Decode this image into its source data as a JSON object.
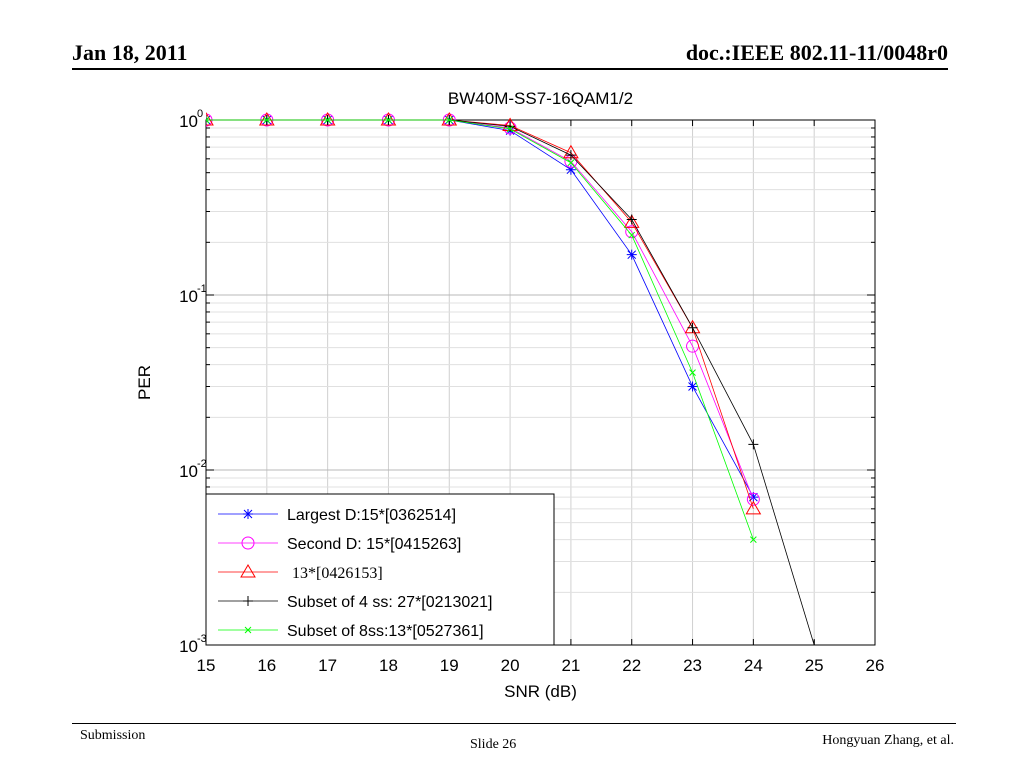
{
  "header": {
    "date": "Jan 18, 2011",
    "doc": "doc.:IEEE 802.11-11/0048r0"
  },
  "footer": {
    "left": "Submission",
    "center": "Slide 26",
    "right": "Hongyuan Zhang, et al."
  },
  "chart_data": {
    "type": "line",
    "title": "BW40M-SS7-16QAM1/2",
    "xlabel": "SNR (dB)",
    "ylabel": "PER",
    "xlim": [
      15,
      26
    ],
    "ylim": [
      0.001,
      1
    ],
    "yscale": "log",
    "grid": true,
    "legend_position": "bottom-left",
    "x_ticks": [
      "15",
      "16",
      "17",
      "18",
      "19",
      "20",
      "21",
      "22",
      "23",
      "24",
      "25",
      "26"
    ],
    "y_ticks": [
      {
        "base": "10",
        "exp": "0"
      },
      {
        "base": "10",
        "exp": "-1"
      },
      {
        "base": "10",
        "exp": "-2"
      },
      {
        "base": "10",
        "exp": "-3"
      }
    ],
    "series": [
      {
        "name": "Largest D:15*[0362514]",
        "color": "#0000ff",
        "marker": "star",
        "x": [
          15,
          16,
          17,
          18,
          19,
          20,
          21,
          22,
          23,
          24
        ],
        "y": [
          1,
          1,
          1,
          1,
          1,
          0.87,
          0.52,
          0.17,
          0.03,
          0.007
        ]
      },
      {
        "name": "Second D: 15*[0415263]",
        "color": "#ff00ff",
        "marker": "circle",
        "x": [
          15,
          16,
          17,
          18,
          19,
          20,
          21,
          22,
          23,
          24
        ],
        "y": [
          1,
          1,
          1,
          1,
          1,
          0.9,
          0.58,
          0.23,
          0.051,
          0.0068
        ]
      },
      {
        "name": "13*[0426153]",
        "color": "#ff0000",
        "marker": "triangle",
        "x": [
          15,
          16,
          17,
          18,
          19,
          20,
          21,
          22,
          23,
          24
        ],
        "y": [
          1,
          1,
          1,
          1,
          1,
          0.93,
          0.65,
          0.26,
          0.065,
          0.006
        ]
      },
      {
        "name": "Subset of 4 ss: 27*[0213021]",
        "color": "#000000",
        "marker": "plus",
        "x": [
          15,
          16,
          17,
          18,
          19,
          20,
          21,
          22,
          23,
          24,
          25
        ],
        "y": [
          1,
          1,
          1,
          1,
          1,
          0.92,
          0.63,
          0.27,
          0.065,
          0.014,
          0.001
        ]
      },
      {
        "name": "Subset of 8ss:13*[0527361]",
        "color": "#00ff00",
        "marker": "x",
        "x": [
          15,
          16,
          17,
          18,
          19,
          20,
          21,
          22,
          23,
          24
        ],
        "y": [
          1,
          1,
          1,
          1,
          1,
          0.89,
          0.57,
          0.22,
          0.036,
          0.004
        ]
      }
    ]
  }
}
